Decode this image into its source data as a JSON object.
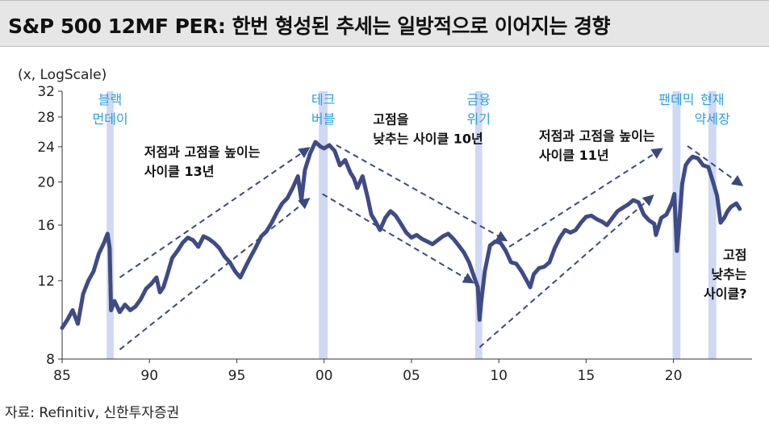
{
  "title": "S&P 500 12MF PER: 한번 형성된 추세는 일방적으로 이어지는 경향",
  "source": "자료: Refinitiv, 신한투자증권",
  "chart_data": {
    "type": "line",
    "ylabel": "(x, LogScale)",
    "y_scale": "log",
    "ylim": [
      8,
      32
    ],
    "yticks": [
      8,
      12,
      16,
      20,
      24,
      28,
      32
    ],
    "xlim": [
      1985,
      2024.5
    ],
    "xticks": [
      {
        "v": 1985,
        "label": "85"
      },
      {
        "v": 1990,
        "label": "90"
      },
      {
        "v": 1995,
        "label": "95"
      },
      {
        "v": 2000,
        "label": "00"
      },
      {
        "v": 2005,
        "label": "05"
      },
      {
        "v": 2010,
        "label": "10"
      },
      {
        "v": 2015,
        "label": "15"
      },
      {
        "v": 2020,
        "label": "20"
      }
    ],
    "line_color": "#3f4b86",
    "shade_color": "#cfd8f5",
    "label_color": "#2a9fe3",
    "arrow_color": "#3a4a7c",
    "series": [
      {
        "x": [
          1985.0,
          1985.3,
          1985.6,
          1985.9,
          1986.2,
          1986.5,
          1986.8,
          1987.1,
          1987.4,
          1987.6,
          1987.72,
          1987.8,
          1988.0,
          1988.3,
          1988.6,
          1988.9,
          1989.2,
          1989.5,
          1989.8,
          1990.1,
          1990.4,
          1990.6,
          1990.8,
          1991.0,
          1991.3,
          1991.6,
          1991.9,
          1992.2,
          1992.5,
          1992.8,
          1993.1,
          1993.4,
          1993.7,
          1994.0,
          1994.3,
          1994.6,
          1994.9,
          1995.2,
          1995.5,
          1995.8,
          1996.1,
          1996.4,
          1996.7,
          1997.0,
          1997.3,
          1997.6,
          1997.9,
          1998.2,
          1998.5,
          1998.7,
          1998.9,
          1999.2,
          1999.5,
          1999.8,
          2000.0,
          2000.3,
          2000.6,
          2000.9,
          2001.2,
          2001.5,
          2001.7,
          2001.9,
          2002.2,
          2002.5,
          2002.7,
          2002.9,
          2003.2,
          2003.5,
          2003.8,
          2004.1,
          2004.4,
          2004.7,
          2005.0,
          2005.3,
          2005.6,
          2005.9,
          2006.2,
          2006.5,
          2006.8,
          2007.1,
          2007.4,
          2007.7,
          2008.0,
          2008.3,
          2008.6,
          2008.8,
          2008.9,
          2009.0,
          2009.2,
          2009.5,
          2009.8,
          2010.1,
          2010.4,
          2010.7,
          2011.0,
          2011.3,
          2011.6,
          2011.8,
          2012.0,
          2012.3,
          2012.6,
          2012.9,
          2013.2,
          2013.5,
          2013.8,
          2014.1,
          2014.4,
          2014.7,
          2015.0,
          2015.3,
          2015.6,
          2015.9,
          2016.2,
          2016.5,
          2016.8,
          2017.1,
          2017.4,
          2017.7,
          2018.0,
          2018.3,
          2018.6,
          2018.9,
          2019.0,
          2019.3,
          2019.6,
          2019.9,
          2020.05,
          2020.2,
          2020.35,
          2020.5,
          2020.7,
          2020.9,
          2021.1,
          2021.4,
          2021.7,
          2022.0,
          2022.3,
          2022.5,
          2022.7,
          2022.9,
          2023.1,
          2023.3,
          2023.6,
          2023.8
        ],
        "y": [
          9.4,
          9.8,
          10.3,
          9.6,
          11.2,
          12.0,
          12.6,
          13.8,
          14.6,
          15.3,
          14.2,
          10.3,
          10.8,
          10.2,
          10.6,
          10.3,
          10.5,
          10.9,
          11.5,
          11.8,
          12.2,
          11.3,
          11.6,
          12.3,
          13.5,
          14.0,
          14.6,
          15.0,
          14.8,
          14.3,
          15.1,
          14.9,
          14.6,
          14.2,
          13.6,
          13.2,
          12.6,
          12.2,
          12.9,
          13.6,
          14.3,
          15.1,
          15.5,
          16.2,
          17.1,
          17.9,
          18.4,
          19.4,
          20.6,
          18.2,
          21.3,
          23.2,
          24.6,
          24.0,
          23.8,
          24.2,
          23.5,
          21.8,
          22.4,
          21.0,
          20.4,
          19.4,
          20.6,
          18.4,
          16.9,
          16.4,
          15.6,
          16.6,
          17.2,
          16.8,
          16.1,
          15.4,
          15.0,
          15.2,
          14.9,
          14.7,
          14.5,
          14.8,
          15.1,
          15.3,
          14.9,
          14.4,
          13.9,
          13.2,
          12.2,
          11.6,
          9.8,
          10.8,
          12.6,
          14.4,
          14.7,
          14.6,
          14.0,
          13.2,
          13.1,
          12.6,
          12.0,
          11.6,
          12.4,
          12.8,
          12.9,
          13.2,
          14.2,
          15.0,
          15.6,
          15.4,
          15.6,
          16.2,
          16.7,
          16.8,
          16.5,
          16.3,
          16.0,
          16.6,
          17.2,
          17.5,
          17.8,
          18.2,
          18.0,
          16.9,
          16.4,
          16.1,
          15.2,
          16.6,
          16.9,
          17.9,
          18.8,
          14.0,
          16.5,
          19.8,
          21.8,
          22.4,
          22.8,
          22.6,
          21.8,
          21.6,
          19.8,
          18.6,
          16.2,
          16.6,
          17.2,
          17.6,
          17.9,
          17.4
        ]
      }
    ],
    "shaded_periods": [
      {
        "from": 1987.55,
        "to": 1987.95,
        "label_lines": [
          "블랙",
          "먼데이"
        ]
      },
      {
        "from": 1999.7,
        "to": 2000.2,
        "label_lines": [
          "테크",
          "버블"
        ]
      },
      {
        "from": 2008.65,
        "to": 2009.05,
        "label_lines": [
          "금융",
          "위기"
        ]
      },
      {
        "from": 2019.95,
        "to": 2020.4,
        "label_lines": [
          "팬데믹"
        ]
      },
      {
        "from": 2022.0,
        "to": 2022.45,
        "label_lines": [
          "현재",
          "약세장"
        ]
      }
    ],
    "annotations": [
      {
        "lines": [
          "저점과 고점을 높이는",
          "사이클 13년"
        ],
        "x": 1989.7,
        "y": 22.8
      },
      {
        "lines": [
          "고점을",
          "낮추는 사이클 10년"
        ],
        "x": 2002.8,
        "y": 27.0
      },
      {
        "lines": [
          "저점과 고점을 높이는",
          "사이클 11년"
        ],
        "x": 2012.3,
        "y": 24.8
      },
      {
        "lines": [
          "고점",
          "낮추는",
          "사이클?"
        ],
        "x": 2024.2,
        "y": 13.4,
        "anchor": "end"
      }
    ],
    "trend_arrows": [
      {
        "from": [
          1988.3,
          12.2
        ],
        "to": [
          1999.1,
          23.8
        ]
      },
      {
        "from": [
          1988.3,
          8.4
        ],
        "to": [
          1999.1,
          18.3
        ]
      },
      {
        "from": [
          2000.7,
          24.2
        ],
        "to": [
          2010.4,
          14.8
        ]
      },
      {
        "from": [
          1999.9,
          18.8
        ],
        "to": [
          2008.5,
          11.9
        ]
      },
      {
        "from": [
          2010.6,
          14.3
        ],
        "to": [
          2019.3,
          23.7
        ]
      },
      {
        "from": [
          2008.9,
          8.5
        ],
        "to": [
          2018.8,
          18.6
        ]
      },
      {
        "from": [
          2020.8,
          24.1
        ],
        "to": [
          2023.9,
          19.7
        ]
      }
    ]
  }
}
